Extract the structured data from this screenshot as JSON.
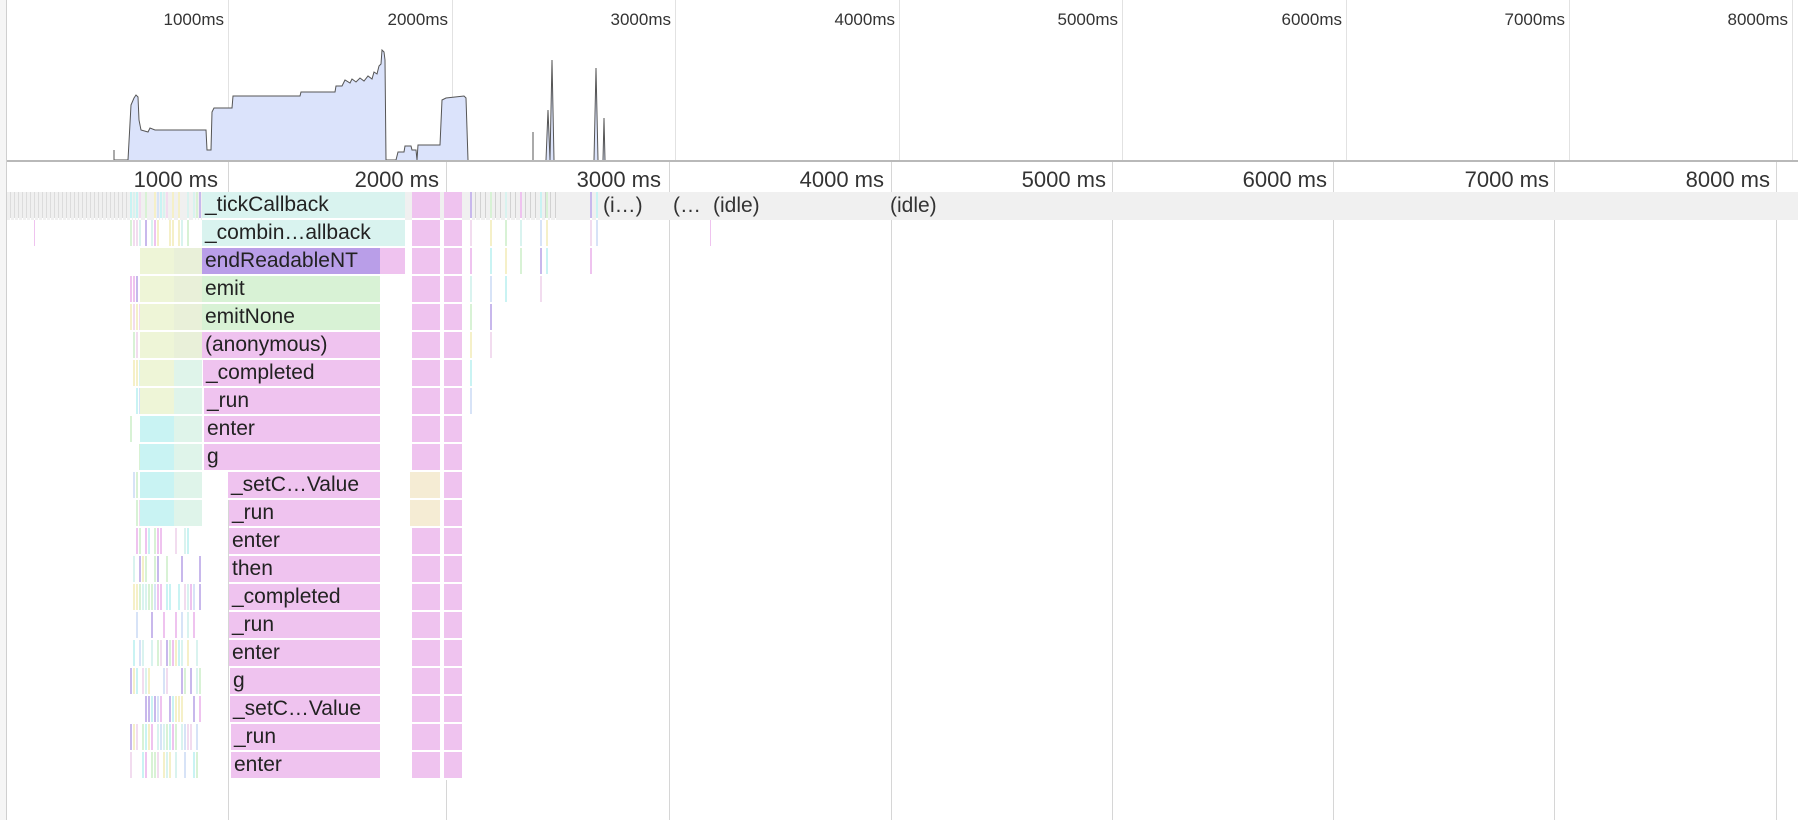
{
  "overview": {
    "tick_labels": [
      "1000ms",
      "2000ms",
      "3000ms",
      "4000ms",
      "5000ms",
      "6000ms",
      "7000ms",
      "8000ms"
    ],
    "colors": {
      "fill": "#dbe3fb",
      "stroke": "#555555"
    }
  },
  "flame": {
    "tick_labels": [
      "1000 ms",
      "2000 ms",
      "3000 ms",
      "4000 ms",
      "5000 ms",
      "6000 ms",
      "7000 ms",
      "8000 ms"
    ],
    "idle_labels": [
      "(i…)",
      "(…",
      "(idle)",
      "(idle)"
    ],
    "frames": [
      {
        "label": "_tickCallback",
        "color": "#d9f3ef"
      },
      {
        "label": "_combin…allback",
        "color": "#d9f3ef"
      },
      {
        "label": "endReadableNT",
        "color": "#b99ee8"
      },
      {
        "label": "emit",
        "color": "#d8f2d5"
      },
      {
        "label": "emitNone",
        "color": "#d8f2d5"
      },
      {
        "label": "(anonymous)",
        "color": "#efc3ef"
      },
      {
        "label": "_completed",
        "color": "#efc3ef"
      },
      {
        "label": "_run",
        "color": "#efc3ef"
      },
      {
        "label": "enter",
        "color": "#efc3ef"
      },
      {
        "label": "g",
        "color": "#efc3ef"
      },
      {
        "label": "_setC…Value",
        "color": "#efc3ef"
      },
      {
        "label": "_run",
        "color": "#efc3ef"
      },
      {
        "label": "enter",
        "color": "#efc3ef"
      },
      {
        "label": "then",
        "color": "#efc3ef"
      },
      {
        "label": "_completed",
        "color": "#efc3ef"
      },
      {
        "label": "_run",
        "color": "#efc3ef"
      },
      {
        "label": "enter",
        "color": "#efc3ef"
      },
      {
        "label": "g",
        "color": "#efc3ef"
      },
      {
        "label": "_setC…Value",
        "color": "#efc3ef"
      },
      {
        "label": "_run",
        "color": "#efc3ef"
      },
      {
        "label": "enter",
        "color": "#efc3ef"
      }
    ]
  }
}
